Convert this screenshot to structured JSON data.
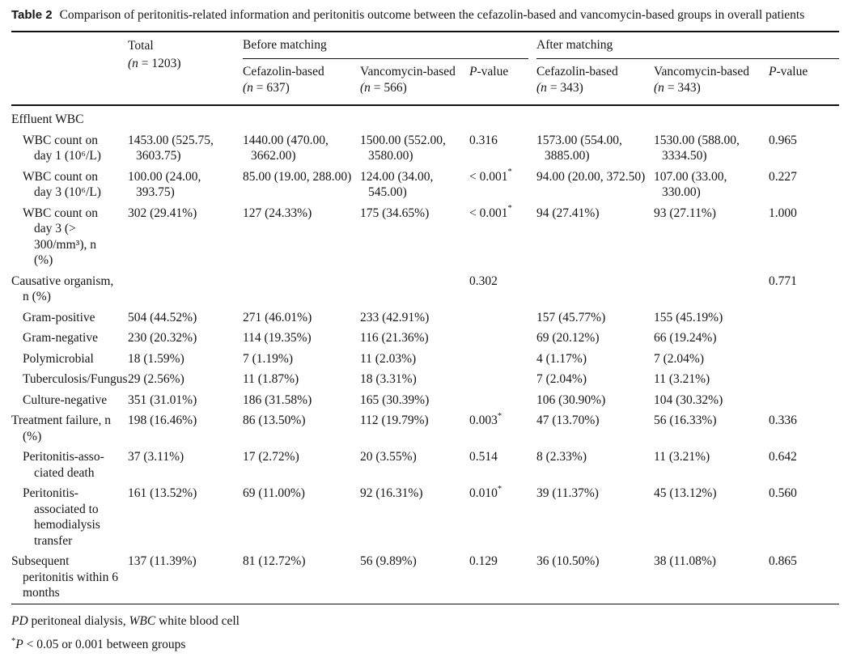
{
  "caption": {
    "label": "Table 2",
    "text": "Comparison of peritonitis-related information and peritonitis outcome between the cefazolin-based and vancomycin-based groups in overall patients"
  },
  "table": {
    "header": {
      "total": {
        "name": "Total",
        "count": "(n = 1203)"
      },
      "groups": [
        {
          "label": "Before matching"
        },
        {
          "label": "After matching"
        }
      ],
      "subcols": [
        {
          "name": "Cefazolin-based",
          "count": "(n = 637)"
        },
        {
          "name": "Vancomycin-based",
          "count": "(n = 566)"
        },
        {
          "name": "P-value"
        },
        {
          "name": "Cefazolin-based",
          "count": "(n = 343)"
        },
        {
          "name": "Vancomycin-based",
          "count": "(n = 343)"
        },
        {
          "name": "P-value"
        }
      ]
    },
    "rows": [
      {
        "label": "Effluent WBC",
        "indent": 0
      },
      {
        "label": "WBC count on day 1 (10⁶/L)",
        "indent": 1,
        "total": "1453.00 (525.75, 3603.75)",
        "before_cef": "1440.00 (470.00, 3662.00)",
        "before_van": "1500.00 (552.00, 3580.00)",
        "before_p": "0.316",
        "after_cef": "1573.00 (554.00, 3885.00)",
        "after_van": "1530.00 (588.00, 3334.50)",
        "after_p": "0.965"
      },
      {
        "label": "WBC count on day 3 (10⁶/L)",
        "indent": 1,
        "total": "100.00 (24.00, 393.75)",
        "before_cef": "85.00 (19.00, 288.00)",
        "before_van": "124.00 (34.00, 545.00)",
        "before_p": "< 0.001",
        "before_p_star": "*",
        "after_cef": "94.00 (20.00, 372.50)",
        "after_van": "107.00 (33.00, 330.00)",
        "after_p": "0.227"
      },
      {
        "label": "WBC count on day 3 (> 300/mm³), n (%)",
        "indent": 1,
        "total": "302 (29.41%)",
        "before_cef": "127 (24.33%)",
        "before_van": "175 (34.65%)",
        "before_p": "< 0.001",
        "before_p_star": "*",
        "after_cef": "94 (27.41%)",
        "after_van": "93 (27.11%)",
        "after_p": "1.000"
      },
      {
        "label": "Causative organ­ism, n (%)",
        "indent": 0,
        "before_p": "0.302",
        "after_p": "0.771"
      },
      {
        "label": "Gram-positive",
        "indent": 1,
        "total": "504 (44.52%)",
        "before_cef": "271 (46.01%)",
        "before_van": "233 (42.91%)",
        "after_cef": "157 (45.77%)",
        "after_van": "155 (45.19%)"
      },
      {
        "label": "Gram-negative",
        "indent": 1,
        "total": "230 (20.32%)",
        "before_cef": "114 (19.35%)",
        "before_van": "116 (21.36%)",
        "after_cef": "69 (20.12%)",
        "after_van": "66 (19.24%)"
      },
      {
        "label": "Polymicrobial",
        "indent": 1,
        "total": "18 (1.59%)",
        "before_cef": "7 (1.19%)",
        "before_van": "11 (2.03%)",
        "after_cef": "4 (1.17%)",
        "after_van": "7 (2.04%)"
      },
      {
        "label": "Tuberculosis/Fungus",
        "indent": 1,
        "total": "29 (2.56%)",
        "before_cef": "11 (1.87%)",
        "before_van": "18 (3.31%)",
        "after_cef": "7 (2.04%)",
        "after_van": "11 (3.21%)"
      },
      {
        "label": "Culture-negative",
        "indent": 1,
        "total": "351 (31.01%)",
        "before_cef": "186 (31.58%)",
        "before_van": "165 (30.39%)",
        "after_cef": "106 (30.90%)",
        "after_van": "104 (30.32%)"
      },
      {
        "label": "Treatment failure, n (%)",
        "indent": 0,
        "total": "198 (16.46%)",
        "before_cef": "86 (13.50%)",
        "before_van": "112 (19.79%)",
        "before_p": "0.003",
        "before_p_star": "*",
        "after_cef": "47 (13.70%)",
        "after_van": "56 (16.33%)",
        "after_p": "0.336"
      },
      {
        "label": "Peritonitis-asso­ciated death",
        "indent": 1,
        "total": "37 (3.11%)",
        "before_cef": "17 (2.72%)",
        "before_van": "20 (3.55%)",
        "before_p": "0.514",
        "after_cef": "8 (2.33%)",
        "after_van": "11 (3.21%)",
        "after_p": "0.642"
      },
      {
        "label": "Peritonitis-associated to hemodialysis transfer",
        "indent": 1,
        "total": "161 (13.52%)",
        "before_cef": "69 (11.00%)",
        "before_van": "92 (16.31%)",
        "before_p": "0.010",
        "before_p_star": "*",
        "after_cef": "39 (11.37%)",
        "after_van": "45 (13.12%)",
        "after_p": "0.560"
      },
      {
        "label": "Subsequent peritonitis within 6 months",
        "indent": 0,
        "total": "137 (11.39%)",
        "before_cef": "81 (12.72%)",
        "before_van": "56 (9.89%)",
        "before_p": "0.129",
        "after_cef": "36 (10.50%)",
        "after_van": "38 (11.08%)",
        "after_p": "0.865"
      }
    ]
  },
  "footer": {
    "abbrev": [
      {
        "t": "PD"
      },
      {
        "t": " peritoneal dialysis, "
      },
      {
        "t": "WBC"
      },
      {
        "t": " white blood cell"
      }
    ],
    "note": {
      "star": "*",
      "p": "P",
      "rest": " < 0.05 or 0.001 between groups"
    }
  }
}
